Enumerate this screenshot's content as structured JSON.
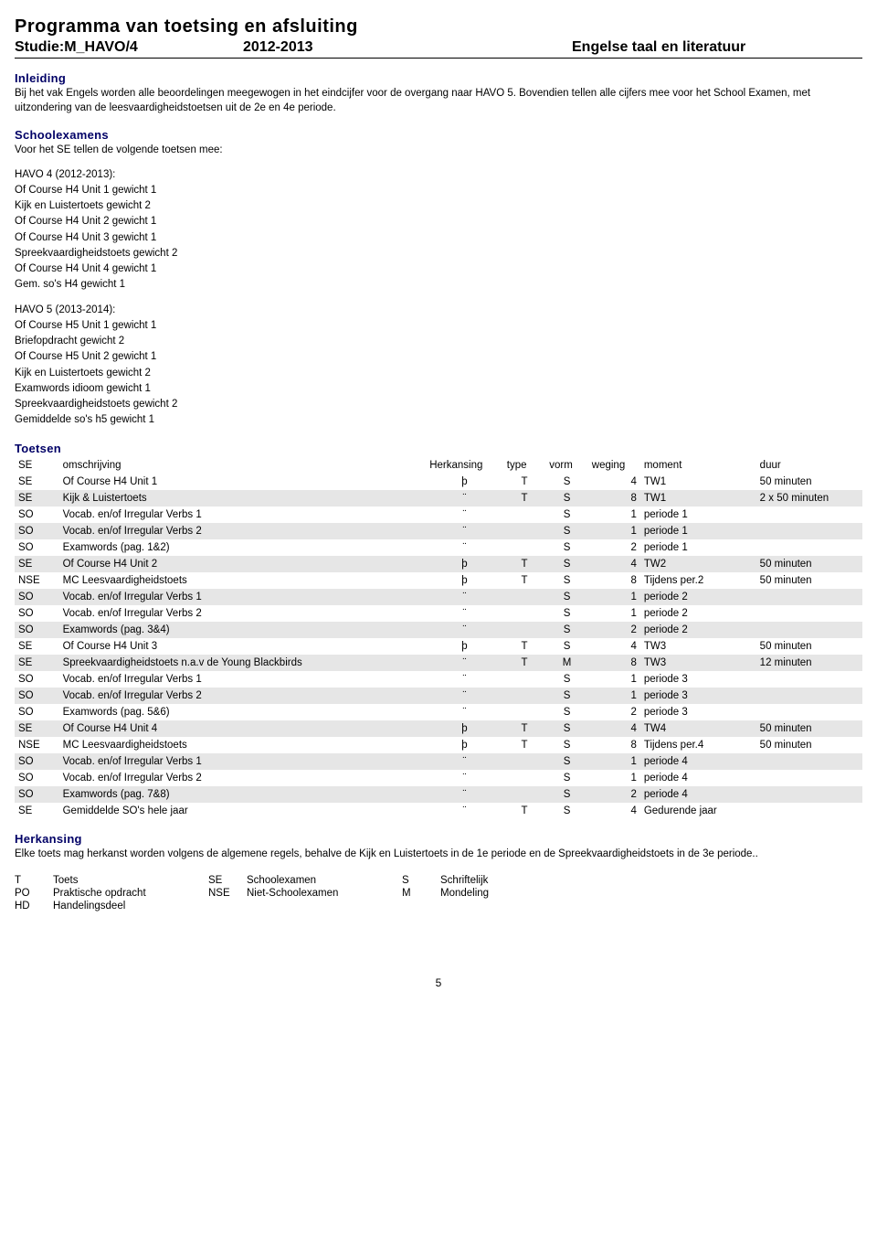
{
  "header": {
    "title": "Programma van toetsing en afsluiting",
    "study_label": "Studie:",
    "study_value": "M_HAVO/4",
    "year": "2012-2013",
    "subject": "Engelse taal en literatuur"
  },
  "inleiding": {
    "heading": "Inleiding",
    "text": "Bij het vak Engels worden alle beoordelingen meegewogen in het eindcijfer voor de overgang naar HAVO 5. Bovendien tellen alle cijfers mee voor het School Examen, met uitzondering van de leesvaardigheidstoetsen uit de 2e en 4e periode."
  },
  "schoolexamens": {
    "heading": "Schoolexamens",
    "intro": "Voor het SE tellen de volgende toetsen mee:",
    "block1_lead": "HAVO 4 (2012-2013):",
    "block1_items": [
      "Of Course H4 Unit 1 gewicht 1",
      "Kijk en Luistertoets gewicht 2",
      "Of Course H4 Unit 2 gewicht 1",
      "Of Course H4 Unit 3 gewicht 1",
      "Spreekvaardigheidstoets gewicht 2",
      "Of Course  H4 Unit 4 gewicht 1",
      "Gem. so's H4 gewicht 1"
    ],
    "block2_lead": "HAVO 5 (2013-2014):",
    "block2_items": [
      "Of Course H5 Unit 1 gewicht 1",
      "Briefopdracht gewicht 2",
      "Of Course H5 Unit 2 gewicht 1",
      "Kijk en Luistertoets gewicht 2",
      "Examwords idioom gewicht 1",
      "Spreekvaardigheidstoets gewicht 2",
      "Gemiddelde so's h5  gewicht 1"
    ]
  },
  "toetsen": {
    "heading": "Toetsen",
    "columns": {
      "se": "SE",
      "oms": "omschrijving",
      "herk": "Herkansing",
      "type": "type",
      "vorm": "vorm",
      "weg": "weging",
      "mom": "moment",
      "duur": "duur"
    },
    "rows": [
      {
        "shaded": false,
        "se": "SE",
        "oms": "Of Course H4 Unit 1",
        "herk": "þ",
        "type": "T",
        "vorm": "S",
        "weg": "4",
        "mom": "TW1",
        "duur": "50 minuten"
      },
      {
        "shaded": true,
        "se": "SE",
        "oms": "Kijk & Luistertoets",
        "herk": "¨",
        "type": "T",
        "vorm": "S",
        "weg": "8",
        "mom": "TW1",
        "duur": "2 x 50 minuten"
      },
      {
        "shaded": false,
        "se": "SO",
        "oms": "Vocab. en/of Irregular Verbs 1",
        "herk": "¨",
        "type": "",
        "vorm": "S",
        "weg": "1",
        "mom": "periode 1",
        "duur": ""
      },
      {
        "shaded": true,
        "se": "SO",
        "oms": "Vocab. en/of Irregular Verbs 2",
        "herk": "¨",
        "type": "",
        "vorm": "S",
        "weg": "1",
        "mom": "periode 1",
        "duur": ""
      },
      {
        "shaded": false,
        "se": "SO",
        "oms": "Examwords (pag. 1&2)",
        "herk": "¨",
        "type": "",
        "vorm": "S",
        "weg": "2",
        "mom": "periode 1",
        "duur": ""
      },
      {
        "shaded": true,
        "se": "SE",
        "oms": "Of Course H4 Unit 2",
        "herk": "þ",
        "type": "T",
        "vorm": "S",
        "weg": "4",
        "mom": "TW2",
        "duur": "50 minuten"
      },
      {
        "shaded": false,
        "se": "NSE",
        "oms": "MC Leesvaardigheidstoets",
        "herk": "þ",
        "type": "T",
        "vorm": "S",
        "weg": "8",
        "mom": "Tijdens per.2",
        "duur": "50 minuten"
      },
      {
        "shaded": true,
        "se": "SO",
        "oms": "Vocab. en/of Irregular Verbs 1",
        "herk": "¨",
        "type": "",
        "vorm": "S",
        "weg": "1",
        "mom": "periode 2",
        "duur": ""
      },
      {
        "shaded": false,
        "se": "SO",
        "oms": "Vocab. en/of Irregular Verbs 2",
        "herk": "¨",
        "type": "",
        "vorm": "S",
        "weg": "1",
        "mom": "periode 2",
        "duur": ""
      },
      {
        "shaded": true,
        "se": "SO",
        "oms": "Examwords (pag. 3&4)",
        "herk": "¨",
        "type": "",
        "vorm": "S",
        "weg": "2",
        "mom": "periode 2",
        "duur": ""
      },
      {
        "shaded": false,
        "se": "SE",
        "oms": "Of Course H4 Unit 3",
        "herk": "þ",
        "type": "T",
        "vorm": "S",
        "weg": "4",
        "mom": "TW3",
        "duur": "50 minuten"
      },
      {
        "shaded": true,
        "se": "SE",
        "oms": "Spreekvaardigheidstoets n.a.v de Young Blackbirds",
        "herk": "¨",
        "type": "T",
        "vorm": "M",
        "weg": "8",
        "mom": "TW3",
        "duur": "12 minuten"
      },
      {
        "shaded": false,
        "se": "SO",
        "oms": "Vocab. en/of Irregular Verbs 1",
        "herk": "¨",
        "type": "",
        "vorm": "S",
        "weg": "1",
        "mom": "periode 3",
        "duur": ""
      },
      {
        "shaded": true,
        "se": "SO",
        "oms": "Vocab. en/of Irregular Verbs 2",
        "herk": "¨",
        "type": "",
        "vorm": "S",
        "weg": "1",
        "mom": "periode 3",
        "duur": ""
      },
      {
        "shaded": false,
        "se": "SO",
        "oms": "Examwords (pag. 5&6)",
        "herk": "¨",
        "type": "",
        "vorm": "S",
        "weg": "2",
        "mom": "periode 3",
        "duur": ""
      },
      {
        "shaded": true,
        "se": "SE",
        "oms": "Of Course H4 Unit 4",
        "herk": "þ",
        "type": "T",
        "vorm": "S",
        "weg": "4",
        "mom": "TW4",
        "duur": "50 minuten"
      },
      {
        "shaded": false,
        "se": "NSE",
        "oms": "MC Leesvaardigheidstoets",
        "herk": "þ",
        "type": "T",
        "vorm": "S",
        "weg": "8",
        "mom": "Tijdens per.4",
        "duur": "50 minuten"
      },
      {
        "shaded": true,
        "se": "SO",
        "oms": "Vocab. en/of Irregular Verbs 1",
        "herk": "¨",
        "type": "",
        "vorm": "S",
        "weg": "1",
        "mom": "periode 4",
        "duur": ""
      },
      {
        "shaded": false,
        "se": "SO",
        "oms": "Vocab. en/of Irregular Verbs 2",
        "herk": "¨",
        "type": "",
        "vorm": "S",
        "weg": "1",
        "mom": "periode 4",
        "duur": ""
      },
      {
        "shaded": true,
        "se": "SO",
        "oms": "Examwords (pag. 7&8)",
        "herk": "¨",
        "type": "",
        "vorm": "S",
        "weg": "2",
        "mom": "periode 4",
        "duur": ""
      },
      {
        "shaded": false,
        "se": "SE",
        "oms": "Gemiddelde SO's hele jaar",
        "herk": "¨",
        "type": "T",
        "vorm": "S",
        "weg": "4",
        "mom": "Gedurende jaar",
        "duur": ""
      }
    ]
  },
  "herkansing": {
    "heading": "Herkansing",
    "text": "Elke toets mag herkanst worden volgens de algemene regels, behalve de Kijk en Luistertoets in de 1e periode en de Spreekvaardigheidstoets in de 3e periode.."
  },
  "legend": {
    "rows": [
      [
        "T",
        "Toets",
        "SE",
        "Schoolexamen",
        "S",
        "Schriftelijk"
      ],
      [
        "PO",
        "Praktische opdracht",
        "NSE",
        "Niet-Schoolexamen",
        "M",
        "Mondeling"
      ],
      [
        "HD",
        "Handelingsdeel",
        "",
        "",
        "",
        ""
      ]
    ]
  },
  "page_number": "5"
}
